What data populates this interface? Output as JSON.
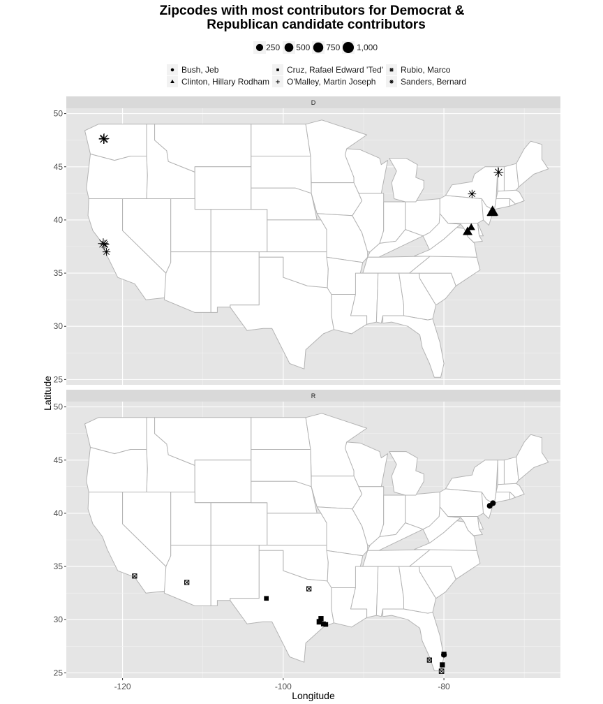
{
  "chart_data": {
    "type": "scatter",
    "title_line1": "Zipcodes with most contributors for Democrat &",
    "title_line2": "Republican candidate contributors",
    "xlabel": "Longitude",
    "ylabel": "Latitude",
    "xlim": [
      -127,
      -65.5
    ],
    "ylim": [
      24.5,
      50.5
    ],
    "x_ticks": [
      -120,
      -100,
      -80
    ],
    "x_tick_labels": [
      "-120",
      "-100",
      "-80"
    ],
    "y_ticks": [
      25,
      30,
      35,
      40,
      45,
      50
    ],
    "y_tick_labels": [
      "25",
      "30",
      "35",
      "40",
      "45",
      "50"
    ],
    "grid": true,
    "background": "#e5e5e5",
    "strip_background": "#d9d9d9",
    "state_fill": "#ffffff",
    "state_border": "#b3b3b3",
    "size_legend": {
      "values": [
        250,
        500,
        750,
        1000
      ],
      "labels": [
        "250",
        "500",
        "750",
        "1,000"
      ]
    },
    "candidates": [
      {
        "name": "Bush, Jeb",
        "shape": "circle"
      },
      {
        "name": "Cruz, Rafael Edward 'Ted'",
        "shape": "square"
      },
      {
        "name": "Rubio, Marco",
        "shape": "square-x"
      },
      {
        "name": "Clinton, Hillary Rodham",
        "shape": "triangle"
      },
      {
        "name": "O'Malley, Martin Joseph",
        "shape": "plus"
      },
      {
        "name": "Sanders, Bernard",
        "shape": "asterisk"
      }
    ],
    "panels": [
      {
        "label": "D",
        "points": [
          {
            "candidate": "Sanders, Bernard",
            "lon": -122.3,
            "lat": 47.65,
            "size": 800
          },
          {
            "candidate": "Sanders, Bernard",
            "lon": -122.35,
            "lat": 47.6,
            "size": 650
          },
          {
            "candidate": "Sanders, Bernard",
            "lon": -122.4,
            "lat": 37.78,
            "size": 850
          },
          {
            "candidate": "Sanders, Bernard",
            "lon": -122.2,
            "lat": 37.7,
            "size": 500
          },
          {
            "candidate": "Sanders, Bernard",
            "lon": -122.0,
            "lat": 37.0,
            "size": 350
          },
          {
            "candidate": "Sanders, Bernard",
            "lon": -76.5,
            "lat": 42.45,
            "size": 400
          },
          {
            "candidate": "Sanders, Bernard",
            "lon": -73.2,
            "lat": 44.48,
            "size": 650
          },
          {
            "candidate": "Clinton, Hillary Rodham",
            "lon": -73.95,
            "lat": 40.78,
            "size": 1000
          },
          {
            "candidate": "Clinton, Hillary Rodham",
            "lon": -74.0,
            "lat": 40.7,
            "size": 700
          },
          {
            "candidate": "Clinton, Hillary Rodham",
            "lon": -77.05,
            "lat": 38.9,
            "size": 600
          },
          {
            "candidate": "Clinton, Hillary Rodham",
            "lon": -76.6,
            "lat": 39.3,
            "size": 300
          }
        ]
      },
      {
        "label": "R",
        "points": [
          {
            "candidate": "Bush, Jeb",
            "lon": -74.3,
            "lat": 40.7,
            "size": 250
          },
          {
            "candidate": "Bush, Jeb",
            "lon": -73.9,
            "lat": 40.95,
            "size": 250
          },
          {
            "candidate": "Bush, Jeb",
            "lon": -80.0,
            "lat": 26.7,
            "size": 250
          },
          {
            "candidate": "Rubio, Marco",
            "lon": -118.5,
            "lat": 34.1,
            "size": 200
          },
          {
            "candidate": "Rubio, Marco",
            "lon": -112.0,
            "lat": 33.5,
            "size": 200
          },
          {
            "candidate": "Rubio, Marco",
            "lon": -96.8,
            "lat": 32.9,
            "size": 200
          },
          {
            "candidate": "Rubio, Marco",
            "lon": -81.8,
            "lat": 26.2,
            "size": 200
          },
          {
            "candidate": "Rubio, Marco",
            "lon": -80.3,
            "lat": 25.15,
            "size": 250
          },
          {
            "candidate": "Rubio, Marco",
            "lon": -80.0,
            "lat": 26.75,
            "size": 200
          },
          {
            "candidate": "Cruz, Rafael Edward 'Ted'",
            "lon": -102.1,
            "lat": 32.0,
            "size": 250
          },
          {
            "candidate": "Cruz, Rafael Edward 'Ted'",
            "lon": -95.5,
            "lat": 29.8,
            "size": 450
          },
          {
            "candidate": "Cruz, Rafael Edward 'Ted'",
            "lon": -95.3,
            "lat": 30.1,
            "size": 350
          },
          {
            "candidate": "Cruz, Rafael Edward 'Ted'",
            "lon": -95.0,
            "lat": 29.6,
            "size": 300
          },
          {
            "candidate": "Cruz, Rafael Edward 'Ted'",
            "lon": -94.7,
            "lat": 29.55,
            "size": 250
          },
          {
            "candidate": "Cruz, Rafael Edward 'Ted'",
            "lon": -80.2,
            "lat": 25.75,
            "size": 350
          }
        ]
      }
    ]
  }
}
